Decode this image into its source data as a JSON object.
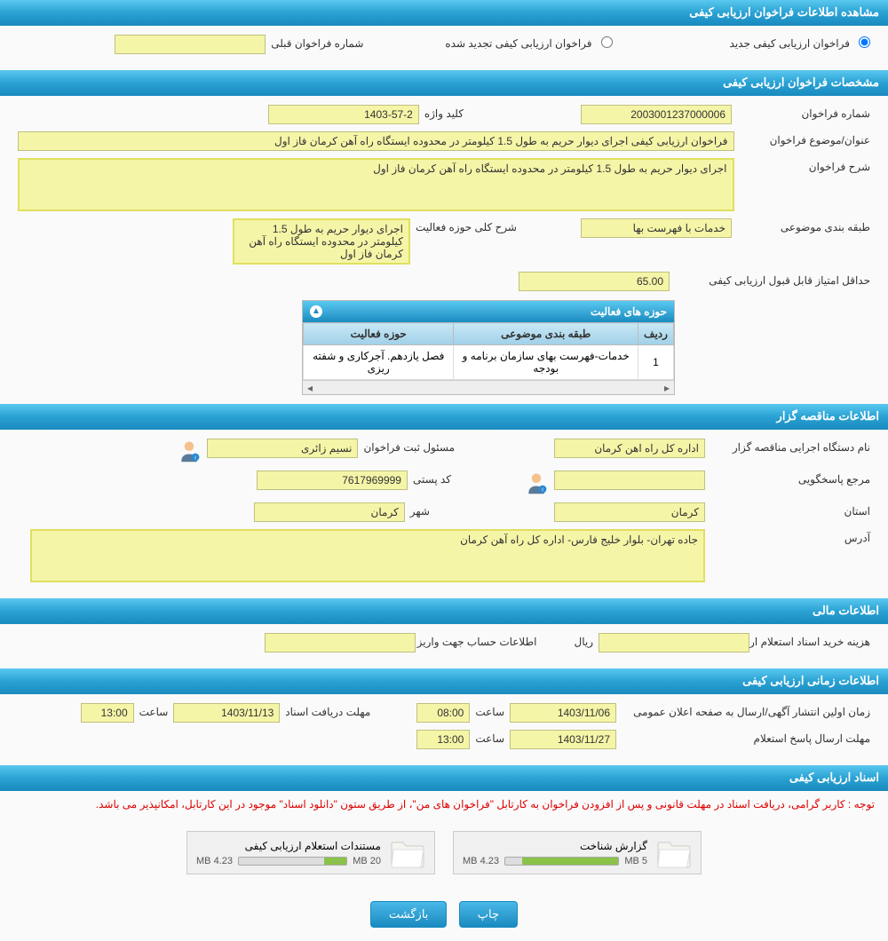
{
  "headers": {
    "h1": "مشاهده اطلاعات فراخوان ارزیابی کیفی",
    "h2": "مشخصات فراخوان ارزیابی کیفی",
    "h3": "اطلاعات مناقصه گزار",
    "h4": "اطلاعات مالی",
    "h5": "اطلاعات زمانی ارزیابی کیفی",
    "h6": "اسناد ارزیابی کیفی"
  },
  "top": {
    "opt_new": "فراخوان ارزیابی کیفی جدید",
    "opt_renew": "فراخوان ارزیابی کیفی تجدید شده",
    "prev_no_label": "شماره فراخوان قبلی",
    "prev_no_value": ""
  },
  "spec": {
    "call_no_label": "شماره فراخوان",
    "call_no_value": "2003001237000006",
    "keyword_label": "کلید واژه",
    "keyword_value": "1403-57-2",
    "subject_label": "عنوان/موضوع فراخوان",
    "subject_value": "فراخوان ارزیابی کیفی اجرای دیوار حریم به طول 1.5 کیلومتر در محدوده ایستگاه راه آهن کرمان فاز اول",
    "desc_label": "شرح فراخوان",
    "desc_value": "اجرای دیوار حریم به طول 1.5 کیلومتر در محدوده ایستگاه راه آهن کرمان فاز اول",
    "class_label": "طبقه بندی موضوعی",
    "class_value": "خدمات با فهرست بها",
    "activity_label": "شرح کلی حوزه فعالیت",
    "activity_value": "اجرای دیوار حریم به طول 1.5 کیلومتر در محدوده ایستگاه راه آهن کرمان فاز اول",
    "minscore_label": "حداقل امتیاز قابل قبول ارزیابی کیفی",
    "minscore_value": "65.00"
  },
  "activity_table": {
    "title": "حوزه های فعالیت",
    "col_row": "ردیف",
    "col_class": "طبقه بندی موضوعی",
    "col_activity": "حوزه فعالیت",
    "rows": [
      {
        "n": "1",
        "class": "خدمات-فهرست بهای سازمان برنامه و بودجه",
        "activity": "فصل یازدهم. آجرکاری و شفته ریزی"
      }
    ]
  },
  "owner": {
    "org_label": "نام دستگاه اجرایی مناقصه گزار",
    "org_value": "اداره کل راه اهن کرمان",
    "reg_label": "مسئول ثبت فراخوان",
    "reg_value": "نسیم زائری",
    "ref_label": "مرجع پاسخگویی",
    "ref_value": "",
    "postal_label": "کد پستی",
    "postal_value": "7617969999",
    "province_label": "استان",
    "province_value": "کرمان",
    "city_label": "شهر",
    "city_value": "کرمان",
    "address_label": "آدرس",
    "address_value": "جاده تهران- بلوار خلیج فارس- اداره کل راه آهن کرمان"
  },
  "financial": {
    "doc_cost_label": "هزینه خرید اسناد استعلام ارزیابی کیفی",
    "doc_cost_value": "",
    "currency": "ریال",
    "account_label": "اطلاعات حساب جهت واریز هزینه خرید اسناد",
    "account_value": ""
  },
  "times": {
    "pub_label": "زمان اولین انتشار آگهی/ارسال به صفحه اعلان عمومی",
    "pub_date": "1403/11/06",
    "pub_time_label": "ساعت",
    "pub_time": "08:00",
    "recv_label": "مهلت دریافت اسناد",
    "recv_date": "1403/11/13",
    "recv_time_label": "ساعت",
    "recv_time": "13:00",
    "reply_label": "مهلت ارسال پاسخ استعلام",
    "reply_date": "1403/11/27",
    "reply_time_label": "ساعت",
    "reply_time": "13:00"
  },
  "docs": {
    "notice": "توجه : کاربر گرامی، دریافت اسناد در مهلت قانونی و پس از افزودن فراخوان به کارتابل \"فراخوان های من\"، از طریق ستون \"دانلود اسناد\" موجود در این کارتابل، امکانپذیر می باشد.",
    "file1_title": "گزارش شناخت",
    "file1_used": "4.23 MB",
    "file1_total": "5 MB",
    "file1_pct": 85,
    "file2_title": "مستندات استعلام ارزیابی کیفی",
    "file2_used": "4.23 MB",
    "file2_total": "20 MB",
    "file2_pct": 21
  },
  "buttons": {
    "print": "چاپ",
    "back": "بازگشت"
  }
}
